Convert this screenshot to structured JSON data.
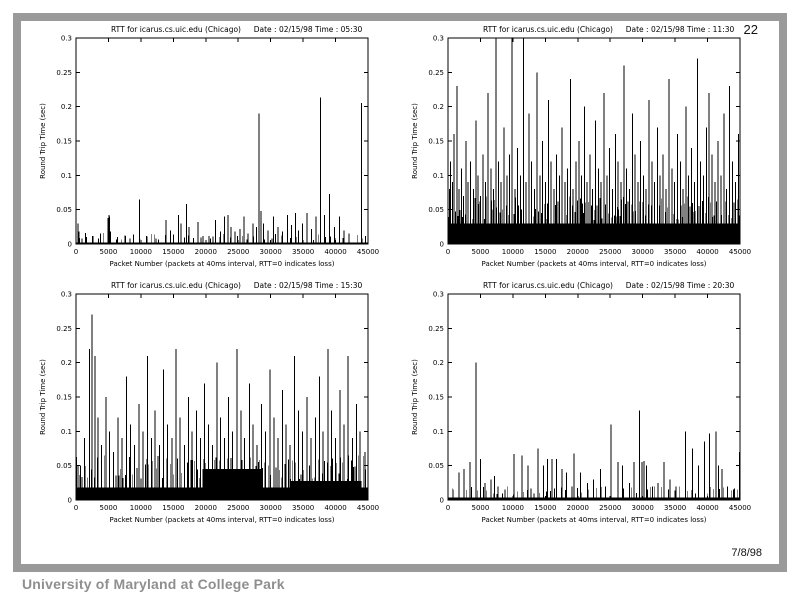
{
  "slide": {
    "page_number": "22",
    "date_footer": "7/8/98",
    "institution_footer": "University of Maryland at College Park"
  },
  "colors": {
    "frame_gray": "#9a9a9a",
    "footer_gray": "#8f8f8f",
    "ink": "#000000",
    "paper": "#ffffff"
  },
  "chart_common": {
    "ylabel": "Round Trip Time (sec)",
    "xlabel": "Packet Number (packets at 40ms interval, RTT=0 indicates loss)",
    "x_ticks": [
      0,
      5000,
      10000,
      15000,
      20000,
      25000,
      30000,
      35000,
      40000,
      45000
    ],
    "y_ticks": [
      0,
      0.05,
      0.1,
      0.15,
      0.2,
      0.25,
      0.3
    ],
    "xlim": [
      0,
      45000
    ],
    "ylim": [
      0,
      0.3
    ],
    "grid": false,
    "legend": "none"
  },
  "chart_data": [
    {
      "type": "bar",
      "style": "impulses",
      "title": "RTT for icarus.cs.uic.edu (Chicago)",
      "date_label": "Date : 02/15/98",
      "time_label": "Time : 05:30",
      "baseline_segments": [
        [
          0,
          45000,
          0.002
        ]
      ],
      "texture": {
        "step": 900,
        "min": 0.006,
        "max": 0.016
      },
      "spikes": [
        [
          300,
          0.03
        ],
        [
          500,
          0.018
        ],
        [
          900,
          0.008
        ],
        [
          1600,
          0.01
        ],
        [
          2600,
          0.012
        ],
        [
          3500,
          0.008
        ],
        [
          4900,
          0.038
        ],
        [
          5050,
          0.042
        ],
        [
          5200,
          0.04
        ],
        [
          5350,
          0.018
        ],
        [
          6400,
          0.01
        ],
        [
          7600,
          0.012
        ],
        [
          8300,
          0.008
        ],
        [
          9800,
          0.065
        ],
        [
          10900,
          0.012
        ],
        [
          12300,
          0.008
        ],
        [
          13900,
          0.035
        ],
        [
          14600,
          0.02
        ],
        [
          15800,
          0.042
        ],
        [
          16200,
          0.03
        ],
        [
          17000,
          0.058
        ],
        [
          17400,
          0.025
        ],
        [
          18800,
          0.032
        ],
        [
          19600,
          0.012
        ],
        [
          20700,
          0.008
        ],
        [
          21500,
          0.035
        ],
        [
          22300,
          0.018
        ],
        [
          22900,
          0.04
        ],
        [
          23400,
          0.042
        ],
        [
          23900,
          0.025
        ],
        [
          24500,
          0.018
        ],
        [
          25300,
          0.022
        ],
        [
          25900,
          0.04
        ],
        [
          26500,
          0.015
        ],
        [
          27300,
          0.03
        ],
        [
          27800,
          0.025
        ],
        [
          28200,
          0.19
        ],
        [
          28500,
          0.048
        ],
        [
          28900,
          0.03
        ],
        [
          29600,
          0.02
        ],
        [
          30400,
          0.04
        ],
        [
          31100,
          0.025
        ],
        [
          31800,
          0.018
        ],
        [
          32600,
          0.042
        ],
        [
          33200,
          0.028
        ],
        [
          33800,
          0.045
        ],
        [
          34300,
          0.02
        ],
        [
          34900,
          0.03
        ],
        [
          35600,
          0.045
        ],
        [
          36300,
          0.022
        ],
        [
          37000,
          0.04
        ],
        [
          37700,
          0.213
        ],
        [
          38300,
          0.042
        ],
        [
          39100,
          0.073
        ],
        [
          39800,
          0.025
        ],
        [
          40600,
          0.04
        ],
        [
          41300,
          0.02
        ],
        [
          42100,
          0.015
        ],
        [
          44000,
          0.205
        ],
        [
          44600,
          0.012
        ]
      ]
    },
    {
      "type": "bar",
      "style": "impulses",
      "title": "RTT for icarus.cs.uic.edu (Chicago)",
      "date_label": "Date : 02/15/98",
      "time_label": "Time : 11:30",
      "baseline_segments": [
        [
          0,
          45000,
          0.03
        ]
      ],
      "texture": {
        "step": 350,
        "min": 0.035,
        "max": 0.07
      },
      "spikes": [
        [
          250,
          0.08
        ],
        [
          420,
          0.12
        ],
        [
          700,
          0.09
        ],
        [
          950,
          0.16
        ],
        [
          1380,
          0.23
        ],
        [
          1700,
          0.08
        ],
        [
          2050,
          0.11
        ],
        [
          2400,
          0.07
        ],
        [
          2750,
          0.15
        ],
        [
          3100,
          0.09
        ],
        [
          3500,
          0.12
        ],
        [
          3900,
          0.08
        ],
        [
          4300,
          0.18
        ],
        [
          4650,
          0.1
        ],
        [
          5000,
          0.07
        ],
        [
          5400,
          0.13
        ],
        [
          5800,
          0.09
        ],
        [
          6200,
          0.22
        ],
        [
          6600,
          0.11
        ],
        [
          7000,
          0.08
        ],
        [
          7400,
          0.3
        ],
        [
          7800,
          0.12
        ],
        [
          8200,
          0.09
        ],
        [
          8650,
          0.17
        ],
        [
          9100,
          0.1
        ],
        [
          9500,
          0.13
        ],
        [
          9900,
          0.3
        ],
        [
          10300,
          0.08
        ],
        [
          10700,
          0.14
        ],
        [
          11200,
          0.1
        ],
        [
          11600,
          0.3
        ],
        [
          12000,
          0.09
        ],
        [
          12450,
          0.19
        ],
        [
          12900,
          0.12
        ],
        [
          13300,
          0.08
        ],
        [
          13750,
          0.25
        ],
        [
          14200,
          0.1
        ],
        [
          14600,
          0.15
        ],
        [
          15000,
          0.09
        ],
        [
          15450,
          0.21
        ],
        [
          15900,
          0.12
        ],
        [
          16300,
          0.08
        ],
        [
          16750,
          0.13
        ],
        [
          17200,
          0.1
        ],
        [
          17600,
          0.17
        ],
        [
          18000,
          0.09
        ],
        [
          18450,
          0.11
        ],
        [
          18900,
          0.24
        ],
        [
          19300,
          0.08
        ],
        [
          19750,
          0.12
        ],
        [
          20200,
          0.15
        ],
        [
          20600,
          0.1
        ],
        [
          21000,
          0.2
        ],
        [
          21450,
          0.09
        ],
        [
          21900,
          0.13
        ],
        [
          22300,
          0.08
        ],
        [
          22750,
          0.18
        ],
        [
          23200,
          0.11
        ],
        [
          23600,
          0.09
        ],
        [
          24050,
          0.22
        ],
        [
          24500,
          0.1
        ],
        [
          24900,
          0.14
        ],
        [
          25350,
          0.08
        ],
        [
          25800,
          0.16
        ],
        [
          26200,
          0.12
        ],
        [
          26650,
          0.09
        ],
        [
          27100,
          0.26
        ],
        [
          27500,
          0.11
        ],
        [
          27950,
          0.08
        ],
        [
          28400,
          0.19
        ],
        [
          28800,
          0.13
        ],
        [
          29250,
          0.09
        ],
        [
          29700,
          0.15
        ],
        [
          30100,
          0.1
        ],
        [
          30550,
          0.08
        ],
        [
          31000,
          0.21
        ],
        [
          31400,
          0.12
        ],
        [
          31850,
          0.09
        ],
        [
          32300,
          0.17
        ],
        [
          32700,
          0.1
        ],
        [
          33150,
          0.13
        ],
        [
          33600,
          0.08
        ],
        [
          34050,
          0.24
        ],
        [
          34500,
          0.11
        ],
        [
          34900,
          0.09
        ],
        [
          35350,
          0.16
        ],
        [
          35800,
          0.12
        ],
        [
          36250,
          0.08
        ],
        [
          36700,
          0.2
        ],
        [
          37100,
          0.1
        ],
        [
          37550,
          0.14
        ],
        [
          38000,
          0.09
        ],
        [
          38450,
          0.27
        ],
        [
          38900,
          0.12
        ],
        [
          39350,
          0.1
        ],
        [
          39800,
          0.17
        ],
        [
          40250,
          0.22
        ],
        [
          40700,
          0.13
        ],
        [
          41150,
          0.09
        ],
        [
          41600,
          0.15
        ],
        [
          42050,
          0.1
        ],
        [
          42500,
          0.19
        ],
        [
          42950,
          0.08
        ],
        [
          43400,
          0.23
        ],
        [
          43850,
          0.12
        ],
        [
          44300,
          0.09
        ],
        [
          44750,
          0.16
        ]
      ]
    },
    {
      "type": "bar",
      "style": "impulses",
      "title": "RTT for icarus.cs.uic.edu (Chicago)",
      "date_label": "Date : 02/15/98",
      "time_label": "Time : 15:30",
      "baseline_segments": [
        [
          0,
          45000,
          0.018
        ],
        [
          19500,
          28500,
          0.045
        ],
        [
          33000,
          44000,
          0.028
        ]
      ],
      "texture": {
        "step": 420,
        "min": 0.03,
        "max": 0.065
      },
      "spikes": [
        [
          700,
          0.05
        ],
        [
          1300,
          0.09
        ],
        [
          2100,
          0.22
        ],
        [
          2500,
          0.27
        ],
        [
          2900,
          0.21
        ],
        [
          3400,
          0.12
        ],
        [
          3900,
          0.08
        ],
        [
          4600,
          0.15
        ],
        [
          5200,
          0.1
        ],
        [
          5800,
          0.07
        ],
        [
          6500,
          0.12
        ],
        [
          7100,
          0.09
        ],
        [
          7800,
          0.18
        ],
        [
          8400,
          0.11
        ],
        [
          9000,
          0.08
        ],
        [
          9700,
          0.14
        ],
        [
          10300,
          0.1
        ],
        [
          11000,
          0.21
        ],
        [
          11600,
          0.09
        ],
        [
          12200,
          0.13
        ],
        [
          12900,
          0.08
        ],
        [
          13500,
          0.19
        ],
        [
          14100,
          0.11
        ],
        [
          14800,
          0.09
        ],
        [
          15400,
          0.22
        ],
        [
          16000,
          0.12
        ],
        [
          16700,
          0.08
        ],
        [
          17300,
          0.15
        ],
        [
          17900,
          0.1
        ],
        [
          18600,
          0.13
        ],
        [
          19200,
          0.09
        ],
        [
          19800,
          0.17
        ],
        [
          20400,
          0.11
        ],
        [
          21000,
          0.08
        ],
        [
          21700,
          0.2
        ],
        [
          22300,
          0.12
        ],
        [
          22900,
          0.09
        ],
        [
          23500,
          0.15
        ],
        [
          24100,
          0.1
        ],
        [
          24800,
          0.22
        ],
        [
          25400,
          0.13
        ],
        [
          26000,
          0.09
        ],
        [
          26700,
          0.17
        ],
        [
          27300,
          0.11
        ],
        [
          27900,
          0.08
        ],
        [
          28600,
          0.14
        ],
        [
          29200,
          0.1
        ],
        [
          29900,
          0.19
        ],
        [
          30500,
          0.12
        ],
        [
          31100,
          0.09
        ],
        [
          31800,
          0.16
        ],
        [
          32400,
          0.11
        ],
        [
          33000,
          0.08
        ],
        [
          33700,
          0.21
        ],
        [
          34300,
          0.13
        ],
        [
          34900,
          0.1
        ],
        [
          35600,
          0.15
        ],
        [
          36200,
          0.09
        ],
        [
          36900,
          0.12
        ],
        [
          37500,
          0.18
        ],
        [
          38100,
          0.1
        ],
        [
          38800,
          0.22
        ],
        [
          39400,
          0.13
        ],
        [
          40000,
          0.09
        ],
        [
          40700,
          0.16
        ],
        [
          41300,
          0.11
        ],
        [
          41900,
          0.21
        ],
        [
          42600,
          0.09
        ],
        [
          43200,
          0.14
        ],
        [
          43800,
          0.1
        ],
        [
          44500,
          0.07
        ]
      ]
    },
    {
      "type": "bar",
      "style": "impulses",
      "title": "RTT for icarus.cs.uic.edu (Chicago)",
      "date_label": "Date : 02/15/98",
      "time_label": "Time : 20:30",
      "baseline_segments": [
        [
          0,
          45000,
          0.004
        ]
      ],
      "texture": {
        "step": 800,
        "min": 0.008,
        "max": 0.02
      },
      "spikes": [
        [
          800,
          0.015
        ],
        [
          1700,
          0.04
        ],
        [
          2500,
          0.045
        ],
        [
          3400,
          0.055
        ],
        [
          4300,
          0.2
        ],
        [
          5000,
          0.06
        ],
        [
          5700,
          0.025
        ],
        [
          6600,
          0.03
        ],
        [
          7200,
          0.035
        ],
        [
          7700,
          0.02
        ],
        [
          8800,
          0.015
        ],
        [
          10200,
          0.067
        ],
        [
          11400,
          0.065
        ],
        [
          12300,
          0.05
        ],
        [
          13900,
          0.075
        ],
        [
          14700,
          0.05
        ],
        [
          15300,
          0.06
        ],
        [
          16000,
          0.06
        ],
        [
          16700,
          0.06
        ],
        [
          17600,
          0.045
        ],
        [
          18300,
          0.04
        ],
        [
          19400,
          0.068
        ],
        [
          20400,
          0.04
        ],
        [
          21500,
          0.025
        ],
        [
          22400,
          0.03
        ],
        [
          23500,
          0.045
        ],
        [
          24300,
          0.02
        ],
        [
          25100,
          0.11
        ],
        [
          26200,
          0.055
        ],
        [
          26900,
          0.05
        ],
        [
          28000,
          0.025
        ],
        [
          28700,
          0.055
        ],
        [
          29500,
          0.13
        ],
        [
          29900,
          0.055
        ],
        [
          30200,
          0.057
        ],
        [
          30600,
          0.05
        ],
        [
          31500,
          0.02
        ],
        [
          32400,
          0.025
        ],
        [
          33300,
          0.055
        ],
        [
          34200,
          0.03
        ],
        [
          35100,
          0.02
        ],
        [
          36600,
          0.1
        ],
        [
          37700,
          0.075
        ],
        [
          38600,
          0.05
        ],
        [
          39500,
          0.085
        ],
        [
          40300,
          0.097
        ],
        [
          41300,
          0.1
        ],
        [
          41700,
          0.05
        ],
        [
          42200,
          0.045
        ],
        [
          43100,
          0.02
        ],
        [
          44000,
          0.015
        ],
        [
          44900,
          0.07
        ]
      ]
    }
  ]
}
